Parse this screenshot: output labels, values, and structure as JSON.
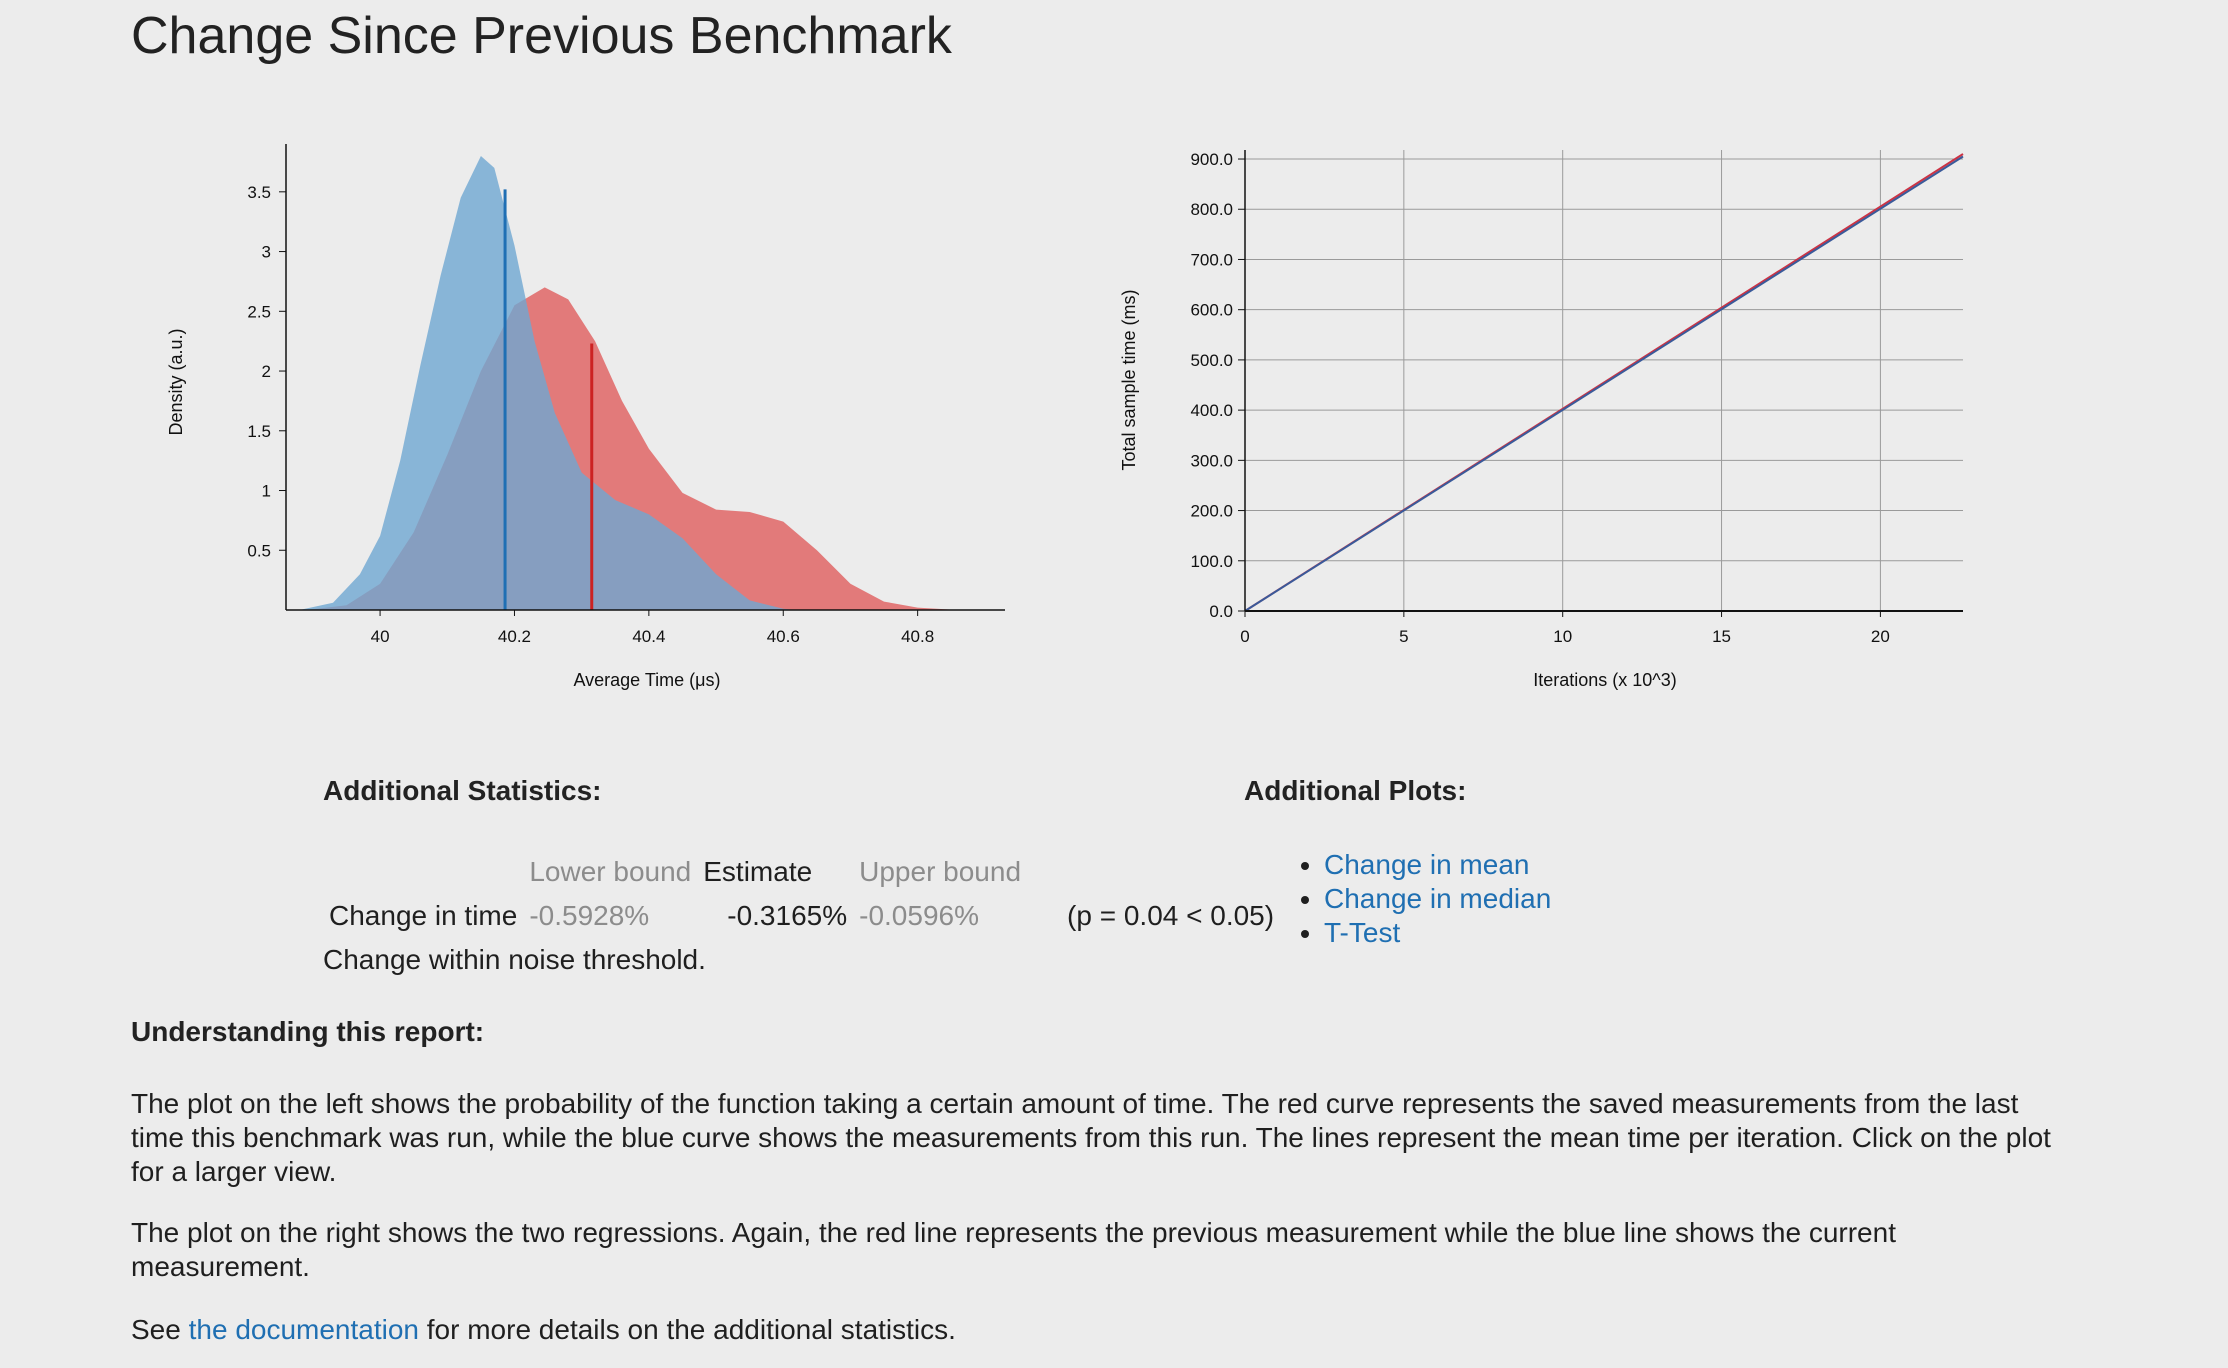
{
  "page": {
    "title": "Change Since Previous Benchmark"
  },
  "chart_data": [
    {
      "type": "area",
      "xlabel": "Average Time (μs)",
      "ylabel": "Density (a.u.)",
      "xticks": [
        "40",
        "40.2",
        "40.4",
        "40.6",
        "40.8"
      ],
      "yticks": [
        "0.5",
        "1",
        "1.5",
        "2",
        "2.5",
        "3",
        "3.5"
      ],
      "xlim": [
        39.86,
        40.93
      ],
      "ylim": [
        0,
        3.85
      ],
      "series": [
        {
          "color": "#e06666",
          "points": [
            [
              39.89,
              0.0
            ],
            [
              39.95,
              0.04
            ],
            [
              40.0,
              0.22
            ],
            [
              40.05,
              0.65
            ],
            [
              40.1,
              1.3
            ],
            [
              40.15,
              2.0
            ],
            [
              40.2,
              2.55
            ],
            [
              40.245,
              2.7
            ],
            [
              40.28,
              2.6
            ],
            [
              40.32,
              2.25
            ],
            [
              40.36,
              1.75
            ],
            [
              40.4,
              1.35
            ],
            [
              40.45,
              0.98
            ],
            [
              40.5,
              0.84
            ],
            [
              40.55,
              0.82
            ],
            [
              40.6,
              0.74
            ],
            [
              40.65,
              0.5
            ],
            [
              40.7,
              0.22
            ],
            [
              40.75,
              0.07
            ],
            [
              40.8,
              0.02
            ],
            [
              40.86,
              0.0
            ]
          ]
        },
        {
          "color": "#6fa8d2",
          "points": [
            [
              39.88,
              0.0
            ],
            [
              39.93,
              0.06
            ],
            [
              39.97,
              0.3
            ],
            [
              40.0,
              0.62
            ],
            [
              40.03,
              1.25
            ],
            [
              40.06,
              2.05
            ],
            [
              40.09,
              2.8
            ],
            [
              40.12,
              3.45
            ],
            [
              40.15,
              3.8
            ],
            [
              40.17,
              3.7
            ],
            [
              40.2,
              3.05
            ],
            [
              40.23,
              2.25
            ],
            [
              40.26,
              1.65
            ],
            [
              40.3,
              1.15
            ],
            [
              40.35,
              0.92
            ],
            [
              40.4,
              0.8
            ],
            [
              40.45,
              0.6
            ],
            [
              40.5,
              0.3
            ],
            [
              40.55,
              0.08
            ],
            [
              40.6,
              0.01
            ],
            [
              40.62,
              0.0
            ]
          ]
        }
      ],
      "mean_lines": [
        {
          "x": 40.186,
          "y": 3.52,
          "color": "#1f6fb4"
        },
        {
          "x": 40.315,
          "y": 2.23,
          "color": "#cc2222"
        }
      ]
    },
    {
      "type": "line",
      "xlabel": "Iterations (x 10^3)",
      "ylabel": "Total sample time (ms)",
      "xticks": [
        "0",
        "5",
        "10",
        "15",
        "20"
      ],
      "yticks": [
        "0.0",
        "100.0",
        "200.0",
        "300.0",
        "400.0",
        "500.0",
        "600.0",
        "700.0",
        "800.0",
        "900.0"
      ],
      "xlim": [
        0,
        22.6
      ],
      "ylim": [
        0,
        910
      ],
      "grid": true,
      "series": [
        {
          "color": "#cc3344",
          "x": [
            0,
            22.6
          ],
          "y": [
            0,
            910
          ]
        },
        {
          "color": "#3a5a9a",
          "x": [
            0,
            22.6
          ],
          "y": [
            0,
            905
          ]
        }
      ]
    }
  ],
  "stats": {
    "title": "Additional Statistics:",
    "headers": {
      "lower": "Lower bound",
      "estimate": "Estimate",
      "upper": "Upper bound"
    },
    "row": {
      "label": "Change in time",
      "lower": "-0.5928%",
      "estimate": "-0.3165%",
      "upper": "-0.0596%",
      "p": "(p = 0.04 < 0.05)"
    },
    "note": "Change within noise threshold."
  },
  "plots": {
    "title": "Additional Plots:",
    "links": [
      "Change in mean",
      "Change in median",
      "T-Test"
    ]
  },
  "report": {
    "title": "Understanding this report:",
    "p1": "The plot on the left shows the probability of the function taking a certain amount of time. The red curve represents the saved measurements from the last time this benchmark was run, while the blue curve shows the measurements from this run. The lines represent the mean time per iteration. Click on the plot for a larger view.",
    "p2": "The plot on the right shows the two regressions. Again, the red line represents the previous measurement while the blue line shows the current measurement.",
    "p3_before": "See ",
    "p3_link": "the documentation",
    "p3_after": " for more details on the additional statistics."
  }
}
